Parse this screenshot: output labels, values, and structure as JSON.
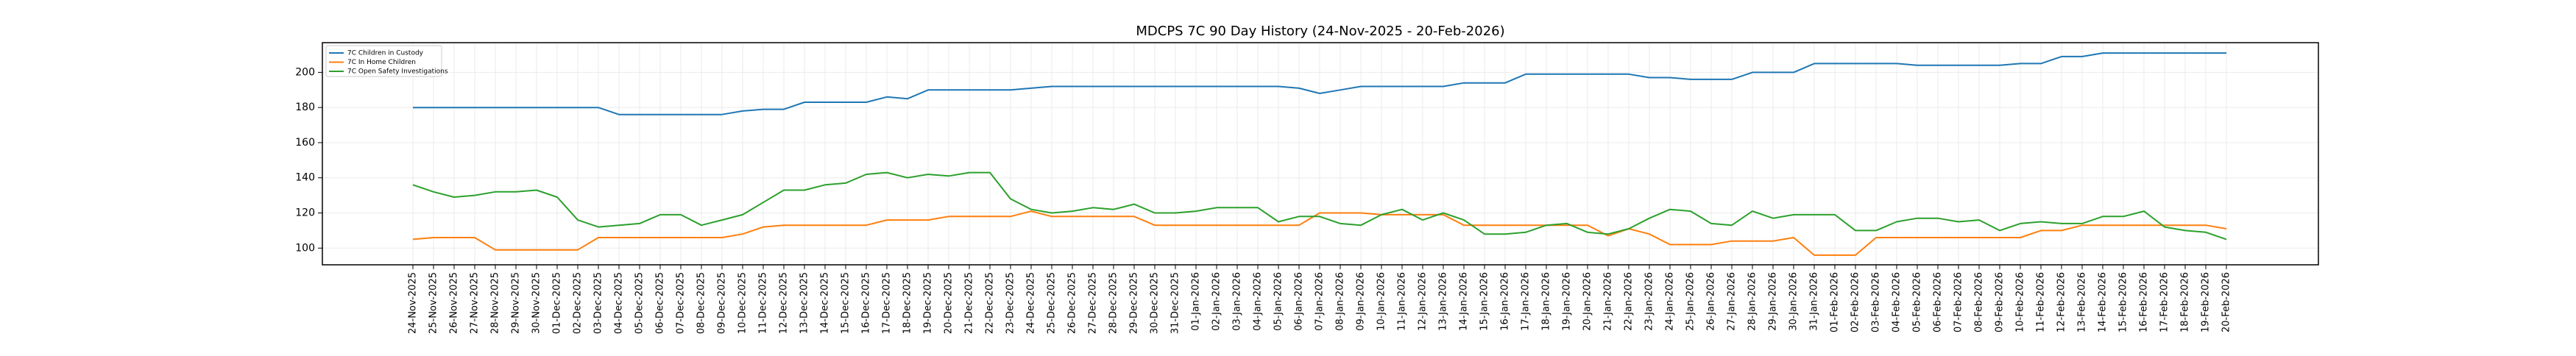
{
  "chart_data": {
    "type": "line",
    "title": "MDCPS 7C 90 Day History (24-Nov-2025 - 20-Feb-2026)",
    "xlabel": "",
    "ylabel": "",
    "ylim": [
      90.5,
      216.9
    ],
    "yticks": [
      100,
      120,
      140,
      160,
      180,
      200
    ],
    "grid": true,
    "legend_position": "top-left",
    "x": [
      "24-Nov-2025",
      "25-Nov-2025",
      "26-Nov-2025",
      "27-Nov-2025",
      "28-Nov-2025",
      "29-Nov-2025",
      "30-Nov-2025",
      "01-Dec-2025",
      "02-Dec-2025",
      "03-Dec-2025",
      "04-Dec-2025",
      "05-Dec-2025",
      "06-Dec-2025",
      "07-Dec-2025",
      "08-Dec-2025",
      "09-Dec-2025",
      "10-Dec-2025",
      "11-Dec-2025",
      "12-Dec-2025",
      "13-Dec-2025",
      "14-Dec-2025",
      "15-Dec-2025",
      "16-Dec-2025",
      "17-Dec-2025",
      "18-Dec-2025",
      "19-Dec-2025",
      "20-Dec-2025",
      "21-Dec-2025",
      "22-Dec-2025",
      "23-Dec-2025",
      "24-Dec-2025",
      "25-Dec-2025",
      "26-Dec-2025",
      "27-Dec-2025",
      "28-Dec-2025",
      "29-Dec-2025",
      "30-Dec-2025",
      "31-Dec-2025",
      "01-Jan-2026",
      "02-Jan-2026",
      "03-Jan-2026",
      "04-Jan-2026",
      "05-Jan-2026",
      "06-Jan-2026",
      "07-Jan-2026",
      "08-Jan-2026",
      "09-Jan-2026",
      "10-Jan-2026",
      "11-Jan-2026",
      "12-Jan-2026",
      "13-Jan-2026",
      "14-Jan-2026",
      "15-Jan-2026",
      "16-Jan-2026",
      "17-Jan-2026",
      "18-Jan-2026",
      "19-Jan-2026",
      "20-Jan-2026",
      "21-Jan-2026",
      "22-Jan-2026",
      "23-Jan-2026",
      "24-Jan-2026",
      "25-Jan-2026",
      "26-Jan-2026",
      "27-Jan-2026",
      "28-Jan-2026",
      "29-Jan-2026",
      "30-Jan-2026",
      "31-Jan-2026",
      "01-Feb-2026",
      "02-Feb-2026",
      "03-Feb-2026",
      "04-Feb-2026",
      "05-Feb-2026",
      "06-Feb-2026",
      "07-Feb-2026",
      "08-Feb-2026",
      "09-Feb-2026",
      "10-Feb-2026",
      "11-Feb-2026",
      "12-Feb-2026",
      "13-Feb-2026",
      "14-Feb-2026",
      "15-Feb-2026",
      "16-Feb-2026",
      "17-Feb-2026",
      "18-Feb-2026",
      "19-Feb-2026",
      "20-Feb-2026"
    ],
    "series": [
      {
        "name": "7C Children in Custody",
        "color": "#1f77b4",
        "values": [
          180,
          180,
          180,
          180,
          180,
          180,
          180,
          180,
          180,
          180,
          176,
          176,
          176,
          176,
          176,
          176,
          178,
          179,
          179,
          183,
          183,
          183,
          183,
          186,
          185,
          190,
          190,
          190,
          190,
          190,
          191,
          192,
          192,
          192,
          192,
          192,
          192,
          192,
          192,
          192,
          192,
          192,
          192,
          191,
          188,
          190,
          192,
          192,
          192,
          192,
          192,
          194,
          194,
          194,
          199,
          199,
          199,
          199,
          199,
          199,
          197,
          197,
          196,
          196,
          196,
          200,
          200,
          200,
          205,
          205,
          205,
          205,
          205,
          204,
          204,
          204,
          204,
          204,
          205,
          205,
          209,
          209,
          211,
          211,
          211,
          211,
          211,
          211,
          211
        ]
      },
      {
        "name": "7C In Home Children",
        "color": "#ff7f0e",
        "values": [
          105,
          106,
          106,
          106,
          99,
          99,
          99,
          99,
          99,
          106,
          106,
          106,
          106,
          106,
          106,
          106,
          108,
          112,
          113,
          113,
          113,
          113,
          113,
          116,
          116,
          116,
          118,
          118,
          118,
          118,
          121,
          118,
          118,
          118,
          118,
          118,
          113,
          113,
          113,
          113,
          113,
          113,
          113,
          113,
          120,
          120,
          120,
          119,
          119,
          119,
          119,
          113,
          113,
          113,
          113,
          113,
          113,
          113,
          107,
          111,
          108,
          102,
          102,
          102,
          104,
          104,
          104,
          106,
          96,
          96,
          96,
          106,
          106,
          106,
          106,
          106,
          106,
          106,
          106,
          110,
          110,
          113,
          113,
          113,
          113,
          113,
          113,
          113,
          111
        ]
      },
      {
        "name": "7C Open Safety Investigations",
        "color": "#2ca02c",
        "values": [
          136,
          132,
          129,
          130,
          132,
          132,
          133,
          129,
          116,
          112,
          113,
          114,
          119,
          119,
          113,
          116,
          119,
          126,
          133,
          133,
          136,
          137,
          142,
          143,
          140,
          142,
          141,
          143,
          143,
          128,
          122,
          120,
          121,
          123,
          122,
          125,
          120,
          120,
          121,
          123,
          123,
          123,
          115,
          118,
          118,
          114,
          113,
          119,
          122,
          116,
          120,
          116,
          108,
          108,
          109,
          113,
          114,
          109,
          108,
          111,
          117,
          122,
          121,
          114,
          113,
          121,
          117,
          119,
          119,
          119,
          110,
          110,
          115,
          117,
          117,
          115,
          116,
          110,
          114,
          115,
          114,
          114,
          118,
          118,
          121,
          112,
          110,
          109,
          105
        ]
      }
    ]
  }
}
